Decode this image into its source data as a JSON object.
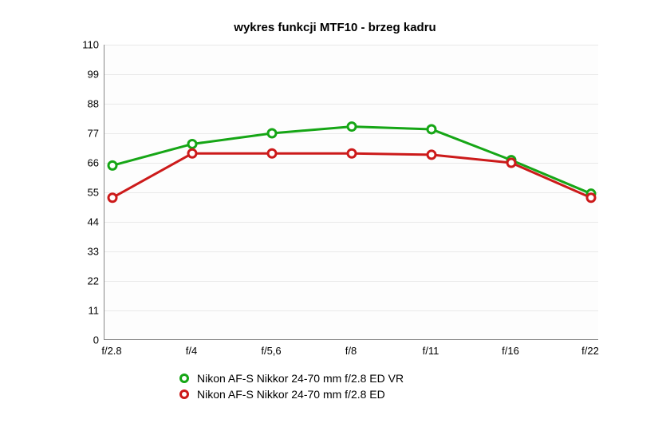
{
  "chart": {
    "type": "line",
    "title": "wykres funkcji MTF10 - brzeg kadru",
    "title_fontsize": 15,
    "title_fontweight": "bold",
    "background_color": "#ffffff",
    "plot_background_color": "#fdfdfd",
    "grid_color": "#e9e9e9",
    "axis_color": "#888888",
    "tick_label_fontsize": 13,
    "tick_label_color": "#000000",
    "x": {
      "categories": [
        "f/2.8",
        "f/4",
        "f/5,6",
        "f/8",
        "f/11",
        "f/16",
        "f/22"
      ]
    },
    "y": {
      "min": 0,
      "max": 110,
      "ticks": [
        0,
        11,
        22,
        33,
        44,
        55,
        66,
        77,
        88,
        99,
        110
      ]
    },
    "series": [
      {
        "name": "Nikon AF-S Nikkor 24-70 mm f/2.8 ED VR",
        "color": "#16a616",
        "line_width": 3,
        "marker_radius": 5,
        "marker_stroke_width": 3,
        "marker_fill": "#ffffff",
        "values": [
          65,
          73,
          77,
          79.5,
          78.5,
          67,
          54.5
        ]
      },
      {
        "name": "Nikon AF-S Nikkor 24-70 mm f/2.8 ED",
        "color": "#cc1a1a",
        "line_width": 3,
        "marker_radius": 5,
        "marker_stroke_width": 3,
        "marker_fill": "#ffffff",
        "values": [
          53,
          69.5,
          69.5,
          69.5,
          69,
          66,
          53
        ]
      }
    ],
    "legend": {
      "fontsize": 14,
      "color": "#000000"
    }
  }
}
